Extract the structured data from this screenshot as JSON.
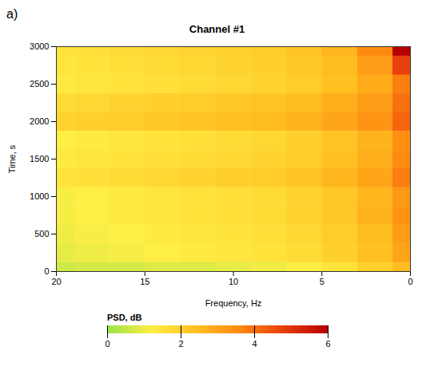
{
  "chart_data": {
    "type": "heatmap",
    "panel_label": "a)",
    "title": "Channel #1",
    "x_label": "Frequency, Hz",
    "y_label": "Time, s",
    "z_label": "PSD, dB",
    "x": [
      0,
      2,
      4,
      6,
      8,
      10,
      12,
      14,
      16,
      18,
      20
    ],
    "y": [
      0,
      250,
      500,
      750,
      1000,
      1250,
      1500,
      1750,
      2000,
      2250,
      2500,
      2750,
      3000
    ],
    "values": [
      [
        2.5,
        2.0,
        1.5,
        1.2,
        1.0,
        0.9,
        0.8,
        0.8,
        0.7,
        0.7,
        0.6
      ],
      [
        3.0,
        2.4,
        2.0,
        1.7,
        1.5,
        1.4,
        1.3,
        1.2,
        1.1,
        1.0,
        0.9
      ],
      [
        3.2,
        2.5,
        2.1,
        1.8,
        1.6,
        1.5,
        1.4,
        1.3,
        1.2,
        1.1,
        1.0
      ],
      [
        3.4,
        2.7,
        2.2,
        1.9,
        1.7,
        1.6,
        1.5,
        1.4,
        1.3,
        1.2,
        1.1
      ],
      [
        3.3,
        2.6,
        2.2,
        1.9,
        1.7,
        1.6,
        1.5,
        1.4,
        1.3,
        1.2,
        1.1
      ],
      [
        3.8,
        3.0,
        2.6,
        2.3,
        2.1,
        2.0,
        1.9,
        1.8,
        1.7,
        1.6,
        1.5
      ],
      [
        3.6,
        2.8,
        2.4,
        2.1,
        1.9,
        1.8,
        1.7,
        1.6,
        1.5,
        1.4,
        1.3
      ],
      [
        3.5,
        2.7,
        2.3,
        2.0,
        1.8,
        1.7,
        1.6,
        1.5,
        1.4,
        1.3,
        1.2
      ],
      [
        4.2,
        3.4,
        3.0,
        2.7,
        2.5,
        2.4,
        2.3,
        2.2,
        2.1,
        2.0,
        1.9
      ],
      [
        4.0,
        3.2,
        2.8,
        2.5,
        2.3,
        2.2,
        2.1,
        2.0,
        1.9,
        1.8,
        1.7
      ],
      [
        3.8,
        2.9,
        2.4,
        2.1,
        1.9,
        1.8,
        1.7,
        1.6,
        1.5,
        1.4,
        1.3
      ],
      [
        4.8,
        3.2,
        2.5,
        2.2,
        2.0,
        1.9,
        1.8,
        1.7,
        1.6,
        1.5,
        1.4
      ],
      [
        6.0,
        3.6,
        2.7,
        2.3,
        2.1,
        2.0,
        1.9,
        1.8,
        1.7,
        1.6,
        1.5
      ]
    ],
    "xlim": [
      20,
      0
    ],
    "xticks": [
      0,
      5,
      10,
      15,
      20
    ],
    "ylim": [
      0,
      3000
    ],
    "yticks": [
      0,
      500,
      1000,
      1500,
      2000,
      2500,
      3000
    ],
    "zlim": [
      0,
      6
    ],
    "zticks": [
      0,
      2,
      4,
      6
    ],
    "colorscale": [
      "#9be34a",
      "#ffee44",
      "#ffc020",
      "#ff8a10",
      "#e8400c",
      "#b80000"
    ],
    "grid": false
  }
}
